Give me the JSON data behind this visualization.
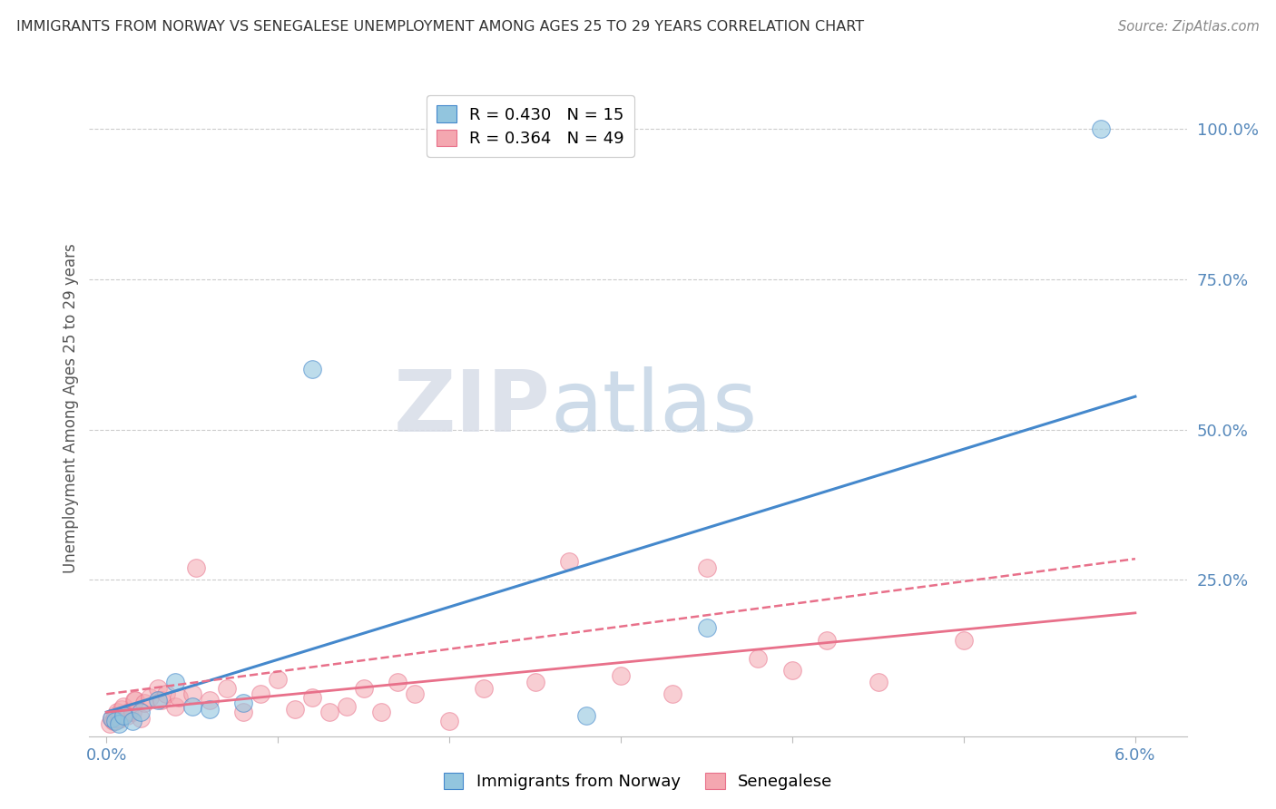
{
  "title": "IMMIGRANTS FROM NORWAY VS SENEGALESE UNEMPLOYMENT AMONG AGES 25 TO 29 YEARS CORRELATION CHART",
  "source": "Source: ZipAtlas.com",
  "ylabel": "Unemployment Among Ages 25 to 29 years",
  "right_yticks": [
    "100.0%",
    "75.0%",
    "50.0%",
    "25.0%"
  ],
  "right_ytick_vals": [
    1.0,
    0.75,
    0.5,
    0.25
  ],
  "legend_entries": [
    {
      "label": "R = 0.430   N = 15",
      "color": "#92c5de"
    },
    {
      "label": "R = 0.364   N = 49",
      "color": "#f4a7b0"
    }
  ],
  "legend_labels_bottom": [
    "Immigrants from Norway",
    "Senegalese"
  ],
  "blue_scatter": [
    [
      0.0003,
      0.02
    ],
    [
      0.0005,
      0.015
    ],
    [
      0.0007,
      0.01
    ],
    [
      0.001,
      0.025
    ],
    [
      0.0015,
      0.015
    ],
    [
      0.002,
      0.03
    ],
    [
      0.003,
      0.05
    ],
    [
      0.004,
      0.08
    ],
    [
      0.005,
      0.04
    ],
    [
      0.006,
      0.035
    ],
    [
      0.008,
      0.045
    ],
    [
      0.012,
      0.6
    ],
    [
      0.028,
      0.025
    ],
    [
      0.035,
      0.17
    ],
    [
      0.058,
      1.0
    ]
  ],
  "pink_scatter": [
    [
      0.0002,
      0.01
    ],
    [
      0.0003,
      0.02
    ],
    [
      0.0004,
      0.015
    ],
    [
      0.0005,
      0.025
    ],
    [
      0.0006,
      0.03
    ],
    [
      0.0007,
      0.018
    ],
    [
      0.0008,
      0.02
    ],
    [
      0.0009,
      0.035
    ],
    [
      0.001,
      0.04
    ],
    [
      0.0012,
      0.025
    ],
    [
      0.0013,
      0.03
    ],
    [
      0.0015,
      0.03
    ],
    [
      0.0016,
      0.05
    ],
    [
      0.0017,
      0.05
    ],
    [
      0.002,
      0.02
    ],
    [
      0.0022,
      0.045
    ],
    [
      0.0025,
      0.055
    ],
    [
      0.003,
      0.07
    ],
    [
      0.0032,
      0.05
    ],
    [
      0.0035,
      0.06
    ],
    [
      0.004,
      0.04
    ],
    [
      0.0042,
      0.055
    ],
    [
      0.005,
      0.06
    ],
    [
      0.0052,
      0.27
    ],
    [
      0.006,
      0.05
    ],
    [
      0.007,
      0.07
    ],
    [
      0.008,
      0.03
    ],
    [
      0.009,
      0.06
    ],
    [
      0.01,
      0.085
    ],
    [
      0.011,
      0.035
    ],
    [
      0.012,
      0.055
    ],
    [
      0.013,
      0.03
    ],
    [
      0.014,
      0.04
    ],
    [
      0.015,
      0.07
    ],
    [
      0.016,
      0.03
    ],
    [
      0.017,
      0.08
    ],
    [
      0.018,
      0.06
    ],
    [
      0.02,
      0.015
    ],
    [
      0.022,
      0.07
    ],
    [
      0.025,
      0.08
    ],
    [
      0.027,
      0.28
    ],
    [
      0.03,
      0.09
    ],
    [
      0.033,
      0.06
    ],
    [
      0.035,
      0.27
    ],
    [
      0.038,
      0.12
    ],
    [
      0.04,
      0.1
    ],
    [
      0.042,
      0.15
    ],
    [
      0.045,
      0.08
    ],
    [
      0.05,
      0.15
    ]
  ],
  "blue_line": {
    "x": [
      0.0,
      0.06
    ],
    "y": [
      0.03,
      0.555
    ]
  },
  "pink_solid_line": {
    "x": [
      0.0,
      0.06
    ],
    "y": [
      0.03,
      0.195
    ]
  },
  "pink_dashed_line": {
    "x": [
      0.0,
      0.06
    ],
    "y": [
      0.06,
      0.285
    ]
  },
  "xlim": [
    -0.001,
    0.063
  ],
  "ylim": [
    -0.01,
    1.08
  ],
  "watermark_zip": "ZIP",
  "watermark_atlas": "atlas",
  "bg_color": "#ffffff",
  "grid_color": "#cccccc",
  "blue_color": "#92c5de",
  "pink_color": "#f4a7b0",
  "blue_line_color": "#4488cc",
  "pink_solid_color": "#e8708a",
  "pink_dashed_color": "#e8708a",
  "title_color": "#333333",
  "source_color": "#888888",
  "tick_color": "#5588bb",
  "axis_label_color": "#555555"
}
